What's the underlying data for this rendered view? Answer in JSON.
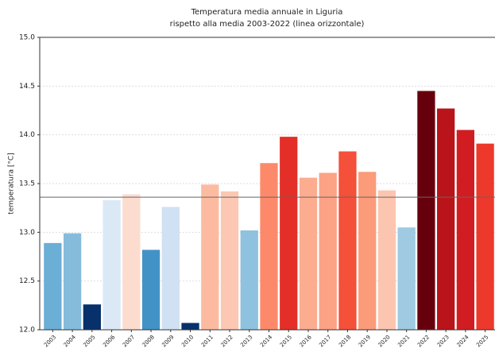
{
  "chart_data": {
    "type": "bar",
    "title": "Temperatura media annuale in Liguria",
    "subtitle": "rispetto alla media 2003-2022 (linea orizzontale)",
    "y_label": "temperatura [°C]",
    "categories": [
      "2003",
      "2004",
      "2005",
      "2006",
      "2007",
      "2008",
      "2009",
      "2010",
      "2011",
      "2012",
      "2013",
      "2014",
      "2015",
      "2016",
      "2017",
      "2018",
      "2019",
      "2020",
      "2021",
      "2022",
      "2023",
      "2024",
      "2025"
    ],
    "values": [
      12.89,
      12.99,
      12.26,
      13.33,
      13.39,
      12.82,
      13.26,
      12.07,
      13.49,
      13.42,
      13.02,
      13.71,
      13.98,
      13.56,
      13.61,
      13.83,
      13.62,
      13.43,
      13.05,
      14.45,
      14.27,
      14.05,
      13.91
    ],
    "colors": [
      "#6baed6",
      "#85bcdc",
      "#08306b",
      "#dbe9f6",
      "#fcdccf",
      "#4292c6",
      "#cfe1f2",
      "#08306b",
      "#fcbba1",
      "#fcc8b3",
      "#8fc2de",
      "#fc8a6a",
      "#e32f27",
      "#fcac8f",
      "#fca285",
      "#f4503a",
      "#fb9b7a",
      "#fcc5b0",
      "#a0cae1",
      "#67000d",
      "#b81419",
      "#d11d22",
      "#ed392b"
    ],
    "mean_line": 13.36,
    "ylim": [
      12,
      15
    ],
    "yticks": [
      {
        "value": 12,
        "label": "12.0"
      },
      12.5,
      {
        "value": 13,
        "label": "13.0"
      },
      13.5,
      {
        "value": 14,
        "label": "14.0"
      },
      14.5,
      {
        "value": 15,
        "label": "15.0"
      }
    ],
    "grid": true
  }
}
